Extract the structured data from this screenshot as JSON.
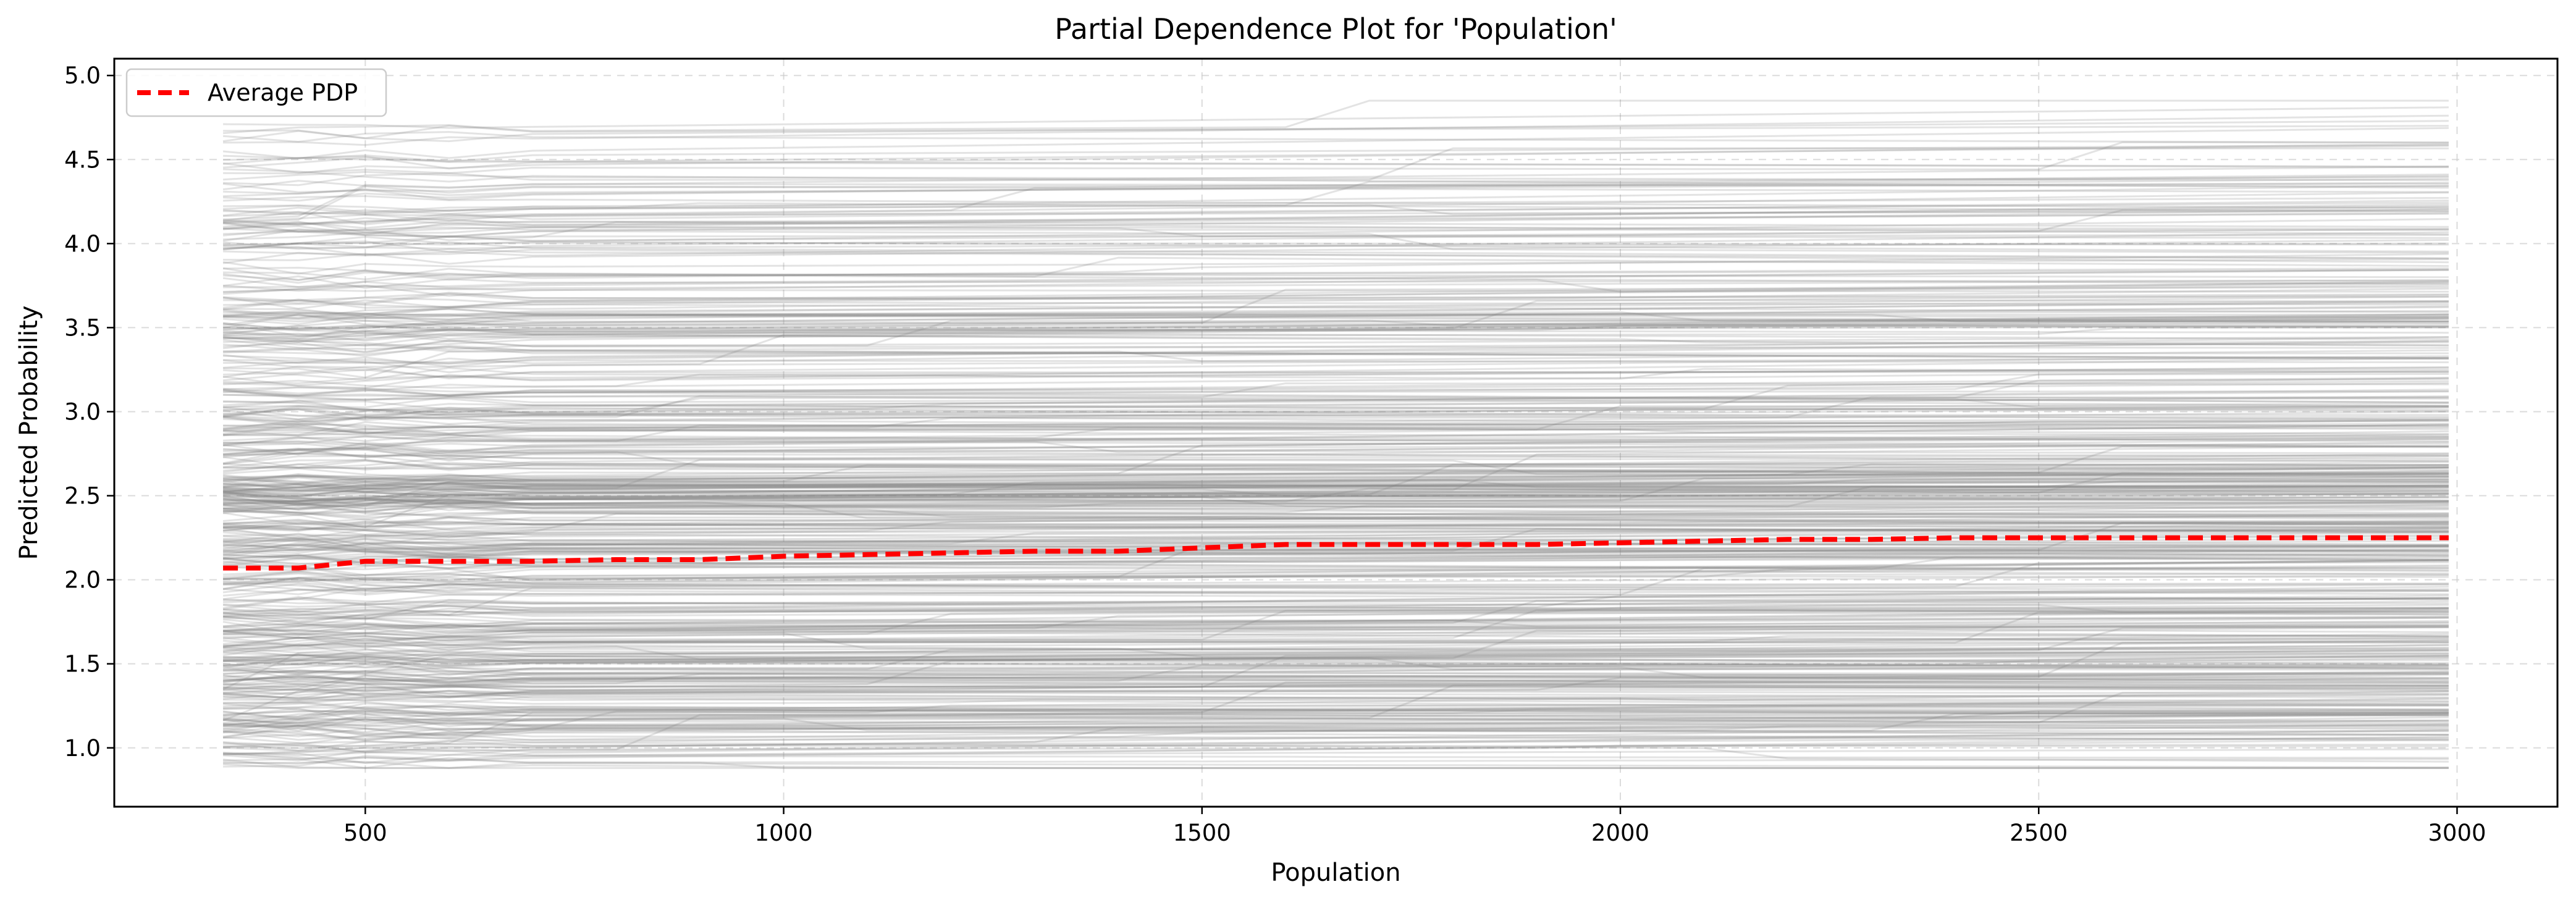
{
  "chart_data": {
    "type": "line",
    "title": "Partial Dependence Plot for 'Population'",
    "xlabel": "Population",
    "ylabel": "Predicted Probability",
    "xlim": [
      200,
      3120
    ],
    "ylim": [
      0.65,
      5.1
    ],
    "x_ticks": [
      500,
      1000,
      1500,
      2000,
      2500,
      3000
    ],
    "x_tick_labels": [
      "500",
      "1000",
      "1500",
      "2000",
      "2500",
      "3000"
    ],
    "y_ticks": [
      1.0,
      1.5,
      2.0,
      2.5,
      3.0,
      3.5,
      4.0,
      4.5,
      5.0
    ],
    "y_tick_labels": [
      "1.0",
      "1.5",
      "2.0",
      "2.5",
      "3.0",
      "3.5",
      "4.0",
      "4.5",
      "5.0"
    ],
    "grid": true,
    "legend": {
      "placement": "upper-left",
      "entries": [
        "Average PDP"
      ]
    },
    "colors": {
      "average": "#ff0000",
      "ice": "#808080",
      "grid": "#cccccc"
    },
    "series": [
      {
        "name": "Average PDP",
        "style": "dashed",
        "x": [
          330,
          420,
          500,
          600,
          700,
          800,
          900,
          1000,
          1100,
          1200,
          1300,
          1400,
          1500,
          1600,
          1700,
          1800,
          1900,
          2000,
          2100,
          2200,
          2300,
          2400,
          2500,
          2600,
          2700,
          2800,
          2900,
          2990
        ],
        "y": [
          2.07,
          2.07,
          2.11,
          2.11,
          2.11,
          2.12,
          2.12,
          2.14,
          2.15,
          2.16,
          2.17,
          2.17,
          2.19,
          2.21,
          2.21,
          2.21,
          2.21,
          2.22,
          2.23,
          2.24,
          2.24,
          2.25,
          2.25,
          2.25,
          2.25,
          2.25,
          2.25,
          2.25
        ]
      }
    ]
  }
}
